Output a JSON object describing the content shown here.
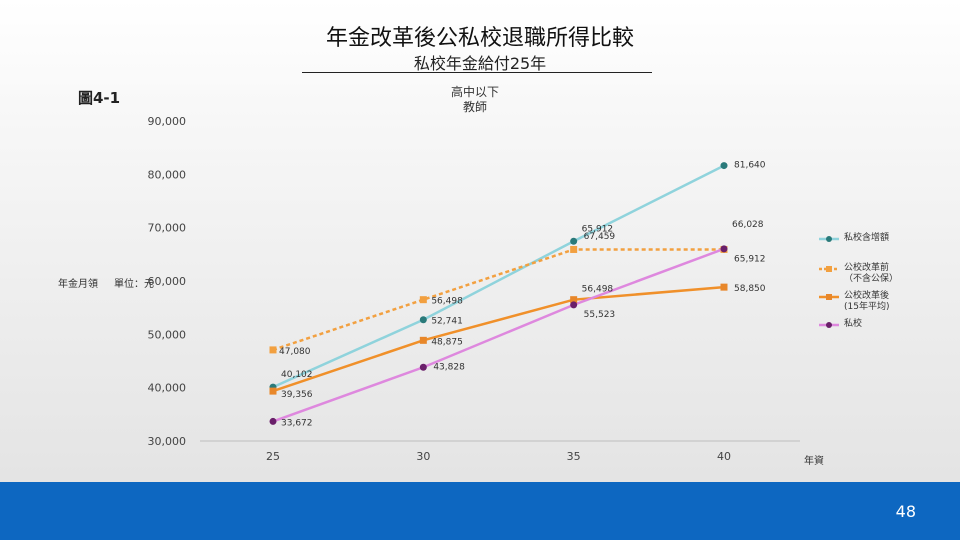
{
  "page": {
    "title": "年金改革後公私校退職所得比較",
    "subtitle": "私校年金給付25年",
    "figure_label": "圖4-1",
    "page_number": "48",
    "footer_color": "#0d67c1"
  },
  "chart_data": {
    "type": "line",
    "title": "高中以下\n教師",
    "ylabel": "年金月領",
    "unit": "單位：元",
    "xlabel": "年資",
    "x": [
      25,
      30,
      35,
      40
    ],
    "yticks": [
      "30,000",
      "40,000",
      "50,000",
      "60,000",
      "70,000",
      "80,000",
      "90,000"
    ],
    "xticks": [
      "25",
      "30",
      "35",
      "40"
    ],
    "ylim": [
      30000,
      90000
    ],
    "grid": false,
    "legend_position": "right",
    "series": [
      {
        "name": "私校含增額",
        "values": [
          40102,
          52741,
          67459,
          81640
        ],
        "labels": [
          "40,102",
          "52,741",
          "67,459",
          "81,640"
        ],
        "color": "#8fd3dc",
        "dash": false,
        "marker": "circle",
        "marker_color": "#2a7a7a"
      },
      {
        "name": "公校改革前\n（不含公保）",
        "values": [
          47080,
          56498,
          65912,
          65912
        ],
        "labels": [
          "47,080",
          "56,498",
          "65,912",
          "65,912"
        ],
        "color": "#f2a040",
        "dash": true,
        "marker": "square",
        "marker_color": "#f2a040"
      },
      {
        "name": "公校改革後\n(15年平均)",
        "values": [
          39356,
          48875,
          56498,
          58850
        ],
        "labels": [
          "39,356",
          "48,875",
          "56,498",
          "58,850"
        ],
        "color": "#f0902a",
        "dash": false,
        "marker": "square",
        "marker_color": "#e8872a"
      },
      {
        "name": "私校",
        "values": [
          33672,
          43828,
          55523,
          66028
        ],
        "labels": [
          "33,672",
          "43,828",
          "55,523",
          "66,028"
        ],
        "color": "#de88de",
        "dash": false,
        "marker": "circle",
        "marker_color": "#6a1f6a"
      }
    ]
  }
}
